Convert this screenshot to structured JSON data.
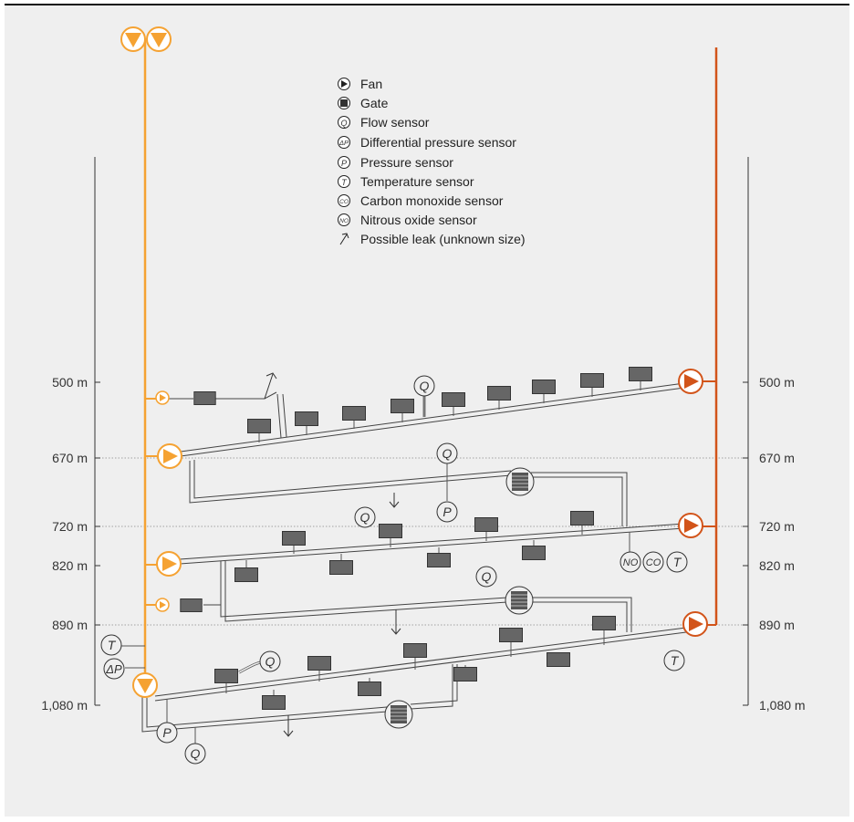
{
  "legend": {
    "fan": "Fan",
    "gate": "Gate",
    "flow": "Flow sensor",
    "dp": "Differential pressure sensor",
    "pressure": "Pressure sensor",
    "temperature": "Temperature sensor",
    "co": "Carbon monoxide sensor",
    "no": "Nitrous oxide sensor",
    "leak": "Possible leak (unknown size)"
  },
  "levels": [
    "500 m",
    "670 m",
    "720 m",
    "820 m",
    "890 m",
    "1,080 m"
  ],
  "symbols": {
    "q": "Q",
    "dp": "ΔP",
    "p": "P",
    "t": "T",
    "co": "CO",
    "no": "NO"
  },
  "colors": {
    "intake_shaft": "#f5a232",
    "exhaust_shaft": "#d2541a",
    "background": "#efefef",
    "machine": "#666666"
  }
}
